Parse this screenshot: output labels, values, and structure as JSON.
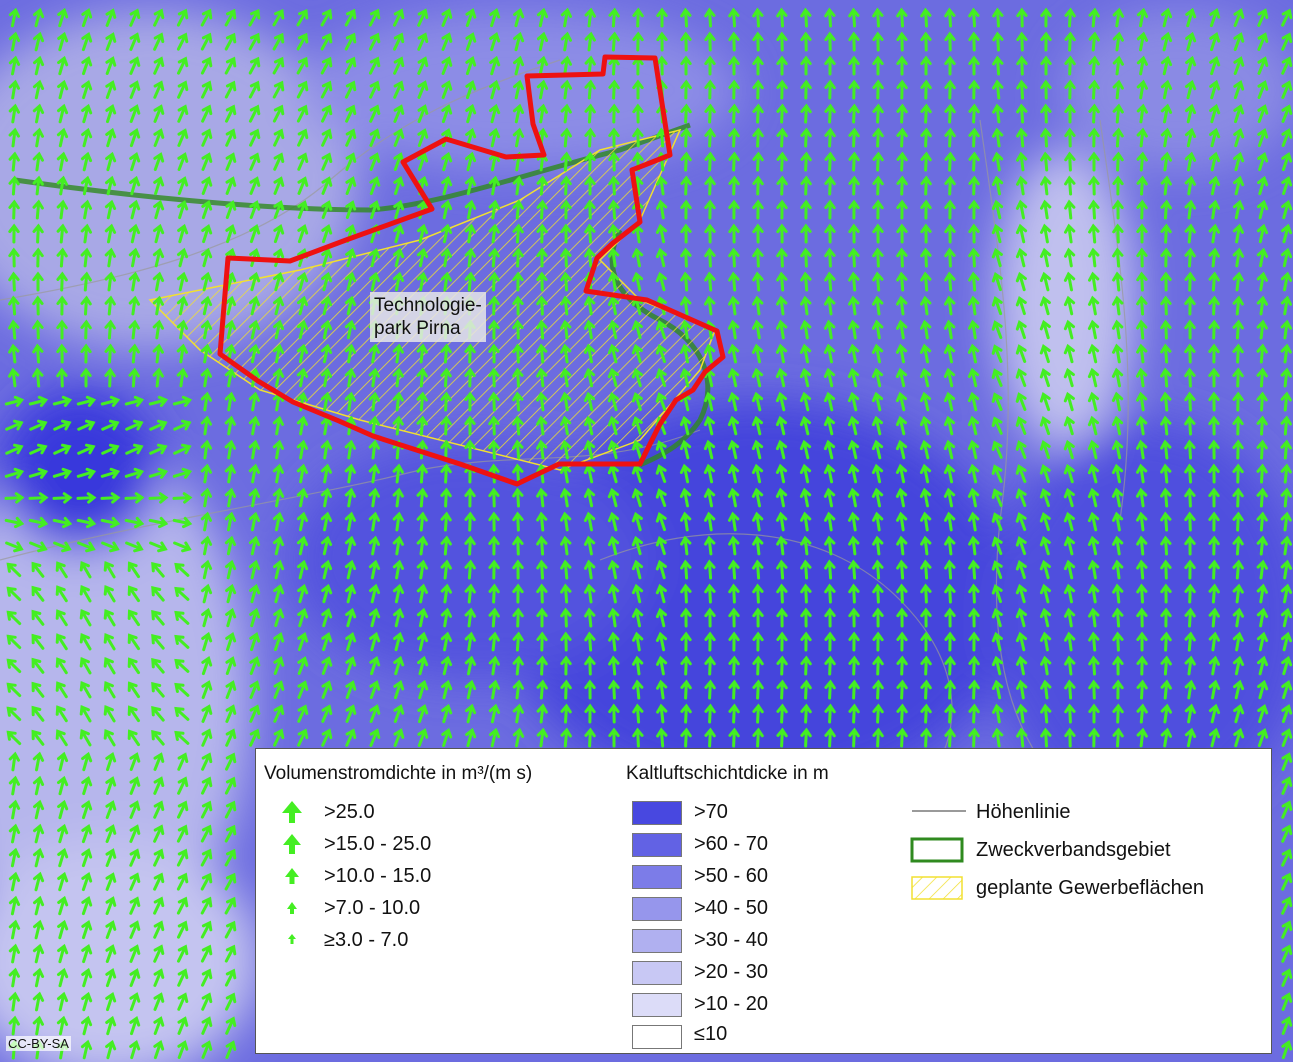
{
  "map": {
    "place_label_line1": "Technologie-",
    "place_label_line2": "park Pirna",
    "credit": "CC-BY-SA",
    "colors": {
      "arrow": "#44ee22",
      "boundary": "#ee1111",
      "zweckverband": "#2f8a1f",
      "gewerbe_hatch": "#f2e030",
      "contour": "#9a9a9a"
    }
  },
  "legend": {
    "flow_title": "Volumenstromdichte in m³/(m s)",
    "flow_classes": [
      ">25.0",
      ">15.0 - 25.0",
      ">10.0 - 15.0",
      ">7.0 - 10.0",
      "≥3.0 - 7.0"
    ],
    "thickness_title": "Kaltluftschichtdicke in m",
    "thickness_classes": [
      {
        "label": ">70",
        "color": "#4848e0"
      },
      {
        "label": ">60 - 70",
        "color": "#6262e4"
      },
      {
        "label": ">50 - 60",
        "color": "#7c7ce8"
      },
      {
        "label": ">40 - 50",
        "color": "#9696ec"
      },
      {
        "label": ">30 - 40",
        "color": "#b0b0f0"
      },
      {
        "label": ">20 - 30",
        "color": "#c8c8f4"
      },
      {
        "label": ">10 - 20",
        "color": "#dcdcf8"
      },
      {
        "label": "≤10",
        "color": "#ffffff"
      }
    ],
    "other": {
      "contour_label": "Höhenlinie",
      "zweckverband_label": "Zweckverbandsgebiet",
      "gewerbe_label": "geplante Gewerbeflächen"
    }
  }
}
